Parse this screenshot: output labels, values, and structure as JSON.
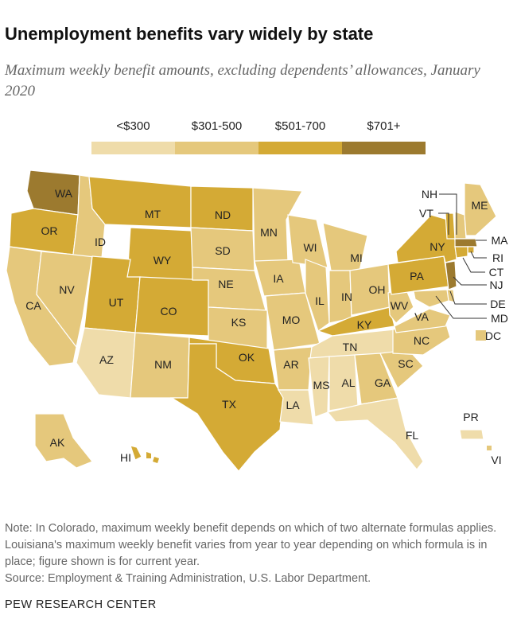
{
  "title": "Unemployment benefits vary widely by state",
  "subtitle": "Maximum weekly benefit amounts, excluding dependents’ allowances, January 2020",
  "legend": {
    "items": [
      {
        "label": "<$300",
        "color": "#efdcaa"
      },
      {
        "label": "$301-500",
        "color": "#e5c87c"
      },
      {
        "label": "$501-700",
        "color": "#d4aa35"
      },
      {
        "label": "$701+",
        "color": "#9c7a2f"
      }
    ]
  },
  "map": {
    "states": [
      {
        "abbr": "WA",
        "category": "$701+"
      },
      {
        "abbr": "OR",
        "category": "$501-700"
      },
      {
        "abbr": "CA",
        "category": "$301-500"
      },
      {
        "abbr": "NV",
        "category": "$301-500"
      },
      {
        "abbr": "ID",
        "category": "$301-500"
      },
      {
        "abbr": "MT",
        "category": "$501-700"
      },
      {
        "abbr": "WY",
        "category": "$501-700"
      },
      {
        "abbr": "UT",
        "category": "$501-700"
      },
      {
        "abbr": "AZ",
        "category": "<$300"
      },
      {
        "abbr": "CO",
        "category": "$501-700"
      },
      {
        "abbr": "NM",
        "category": "$301-500"
      },
      {
        "abbr": "ND",
        "category": "$501-700"
      },
      {
        "abbr": "SD",
        "category": "$301-500"
      },
      {
        "abbr": "NE",
        "category": "$301-500"
      },
      {
        "abbr": "KS",
        "category": "$301-500"
      },
      {
        "abbr": "OK",
        "category": "$501-700"
      },
      {
        "abbr": "TX",
        "category": "$501-700"
      },
      {
        "abbr": "MN",
        "category": "$301-500"
      },
      {
        "abbr": "IA",
        "category": "$301-500"
      },
      {
        "abbr": "MO",
        "category": "$301-500"
      },
      {
        "abbr": "AR",
        "category": "$301-500"
      },
      {
        "abbr": "LA",
        "category": "<$300"
      },
      {
        "abbr": "WI",
        "category": "$301-500"
      },
      {
        "abbr": "IL",
        "category": "$301-500"
      },
      {
        "abbr": "MI",
        "category": "$301-500"
      },
      {
        "abbr": "IN",
        "category": "$301-500"
      },
      {
        "abbr": "OH",
        "category": "$301-500"
      },
      {
        "abbr": "KY",
        "category": "$501-700"
      },
      {
        "abbr": "TN",
        "category": "<$300"
      },
      {
        "abbr": "MS",
        "category": "<$300"
      },
      {
        "abbr": "AL",
        "category": "<$300"
      },
      {
        "abbr": "GA",
        "category": "$301-500"
      },
      {
        "abbr": "FL",
        "category": "<$300"
      },
      {
        "abbr": "SC",
        "category": "$301-500"
      },
      {
        "abbr": "NC",
        "category": "$301-500"
      },
      {
        "abbr": "VA",
        "category": "$301-500"
      },
      {
        "abbr": "WV",
        "category": "$301-500"
      },
      {
        "abbr": "PA",
        "category": "$501-700"
      },
      {
        "abbr": "NY",
        "category": "$501-700"
      },
      {
        "abbr": "VT",
        "category": "$501-700"
      },
      {
        "abbr": "NH",
        "category": "$301-500"
      },
      {
        "abbr": "ME",
        "category": "$301-500"
      },
      {
        "abbr": "MA",
        "category": "$701+"
      },
      {
        "abbr": "RI",
        "category": "$501-700"
      },
      {
        "abbr": "CT",
        "category": "$501-700"
      },
      {
        "abbr": "NJ",
        "category": "$701+"
      },
      {
        "abbr": "DE",
        "category": "$301-500"
      },
      {
        "abbr": "MD",
        "category": "$301-500"
      },
      {
        "abbr": "DC",
        "category": "$301-500"
      },
      {
        "abbr": "AK",
        "category": "$301-500"
      },
      {
        "abbr": "HI",
        "category": "$501-700"
      },
      {
        "abbr": "PR",
        "category": "<$300"
      },
      {
        "abbr": "VI",
        "category": "$301-500"
      }
    ]
  },
  "note": "Note: In Colorado, maximum weekly benefit depends on which of two alternate formulas applies. Louisiana's maximum weekly benefit varies from year to year depending on which formula is in place; figure shown is for current year.",
  "source": "Source: Employment & Training Administration, U.S. Labor Department.",
  "brand": "PEW RESEARCH CENTER"
}
